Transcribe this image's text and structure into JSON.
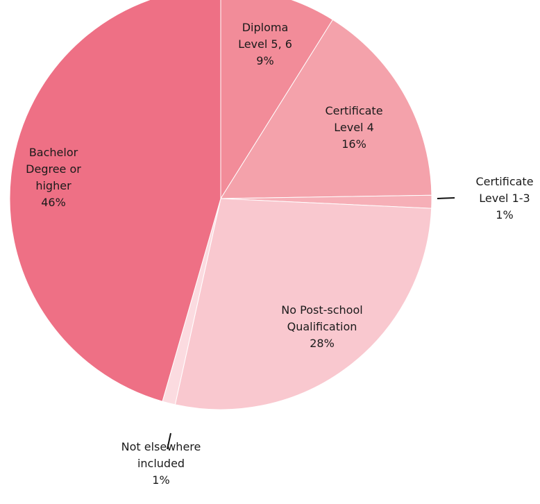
{
  "chart_data": {
    "type": "pie",
    "title": "",
    "start_angle_deg": 0,
    "direction": "clockwise",
    "slices": [
      {
        "name": "Diploma Level 5, 6",
        "value": 9,
        "color": "#f28c99",
        "label_lines": [
          "Diploma",
          "Level 5, 6",
          "9%"
        ]
      },
      {
        "name": "Certificate Level 4",
        "value": 16,
        "color": "#f4a2ab",
        "label_lines": [
          "Certificate",
          "Level 4",
          "16%"
        ]
      },
      {
        "name": "Certificate Level 1-3",
        "value": 1,
        "color": "#f6afb7",
        "label_lines": [
          "Certificate",
          "Level 1-3",
          "1%"
        ],
        "label_outside": true
      },
      {
        "name": "No Post-school Qualification",
        "value": 28,
        "color": "#f9c8cf",
        "label_lines": [
          "No Post-school",
          "Qualification",
          "28%"
        ]
      },
      {
        "name": "Not elsewhere included",
        "value": 1,
        "color": "#fbdbe0",
        "label_lines": [
          "Not elsewhere",
          "included",
          "1%"
        ],
        "label_outside": true
      },
      {
        "name": "Bachelor Degree or higher",
        "value": 46,
        "color": "#ee7085",
        "label_lines": [
          "Bachelor",
          "Degree or",
          "higher",
          "46%"
        ]
      }
    ]
  }
}
